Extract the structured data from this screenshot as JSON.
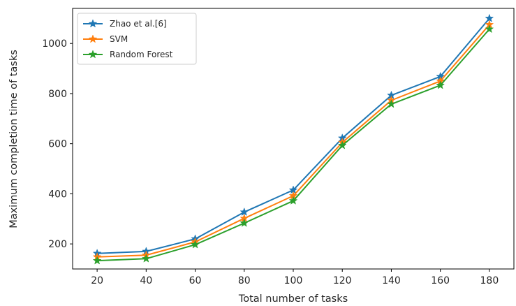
{
  "chart_data": {
    "type": "line",
    "title": "",
    "xlabel": "Total number of tasks",
    "ylabel": "Maximum completion time of tasks",
    "x": [
      20,
      40,
      60,
      80,
      100,
      120,
      140,
      160,
      180
    ],
    "xlim": [
      10,
      190
    ],
    "ylim": [
      100,
      1140
    ],
    "xticks": [
      20,
      40,
      60,
      80,
      100,
      120,
      140,
      160,
      180
    ],
    "yticks": [
      200,
      400,
      600,
      800,
      1000
    ],
    "grid": false,
    "legend_position": "top-left",
    "marker": "star",
    "series": [
      {
        "name": "Zhao et al.[6]",
        "color": "#1f77b4",
        "values": [
          162,
          170,
          220,
          327,
          415,
          622,
          793,
          868,
          1100
        ]
      },
      {
        "name": "SVM",
        "color": "#ff7f0e",
        "values": [
          148,
          155,
          208,
          302,
          392,
          605,
          773,
          850,
          1075
        ]
      },
      {
        "name": "Random Forest",
        "color": "#2ca02c",
        "values": [
          133,
          141,
          197,
          283,
          372,
          593,
          758,
          833,
          1057
        ]
      }
    ]
  }
}
